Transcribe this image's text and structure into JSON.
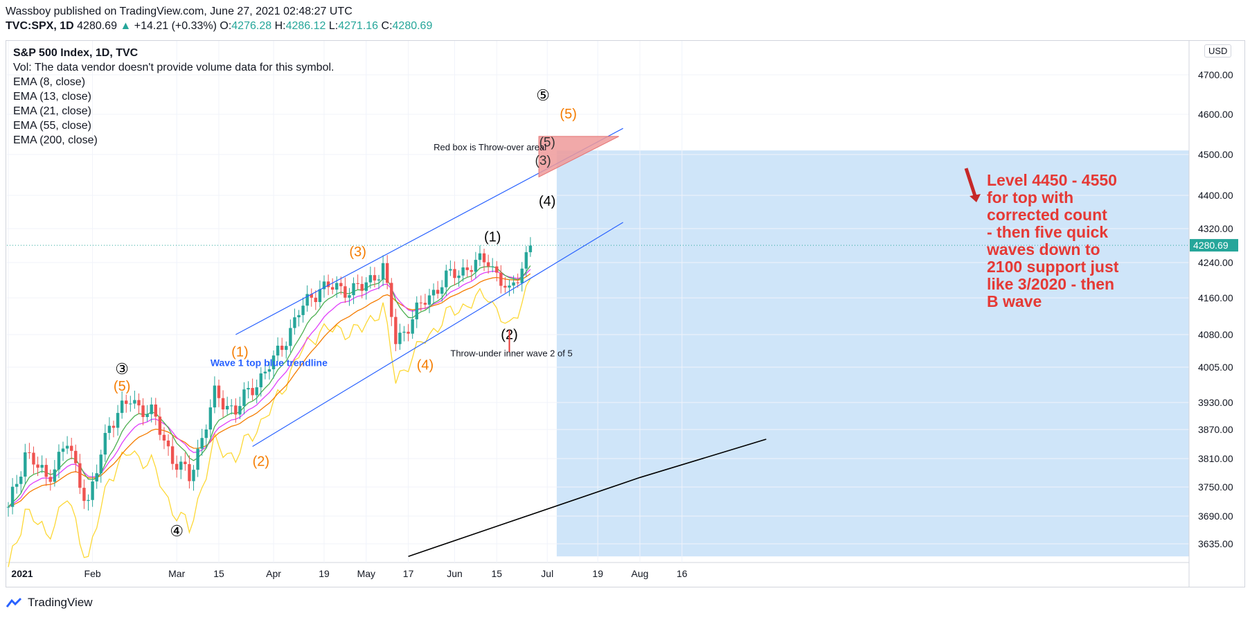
{
  "header": {
    "published": "Wassboy published on TradingView.com, June 27, 2021 02:48:27 UTC",
    "symbol": "TVC:SPX, 1D",
    "last": "4280.69",
    "change_arrow": "▲",
    "change": "+14.21 (+0.33%)",
    "o_label": "O:",
    "o": "4276.28",
    "h_label": "H:",
    "h": "4286.12",
    "l_label": "L:",
    "l": "4271.16",
    "c_label": "C:",
    "c": "4280.69"
  },
  "legend": {
    "title": "S&P 500 Index, 1D, TVC",
    "vol": "Vol: The data vendor doesn't provide volume data for this symbol.",
    "emas": [
      "EMA (8, close)",
      "EMA (13, close)",
      "EMA (21, close)",
      "EMA (55, close)",
      "EMA (200, close)"
    ]
  },
  "currency": "USD",
  "footer": {
    "brand": "TradingView"
  },
  "colors": {
    "up": "#26a69a",
    "down": "#ef5350",
    "ema8": "#4caf50",
    "ema13": "#e040fb",
    "ema21": "#f57c00",
    "ema55": "#fdd835",
    "ema200": "#000000",
    "channel": "#2962ff",
    "orange": "#f57c00",
    "red_text": "#e53935",
    "box": "#ef9a9a",
    "projection": "#cfe5f9"
  },
  "chart_data": {
    "type": "candlestick",
    "title": "S&P 500 Index, 1D, TVC",
    "y_ticks": [
      3635,
      3690,
      3750,
      3810,
      3870,
      3930,
      4005,
      4080,
      4160,
      4240,
      4320,
      4400,
      4500,
      4600,
      4700
    ],
    "y_tick_labels": [
      "3635.00",
      "3690.00",
      "3750.00",
      "3810.00",
      "3870.00",
      "3930.00",
      "4005.00",
      "4080.00",
      "4160.00",
      "4240.00",
      "4320.00",
      "4400.00",
      "4500.00",
      "4600.00",
      "4700.00"
    ],
    "x_tick_labels": [
      "2021",
      "Feb",
      "Mar",
      "15",
      "Apr",
      "19",
      "May",
      "17",
      "Jun",
      "15",
      "Jul",
      "19",
      "Aug",
      "16"
    ],
    "last_price": "4280.69",
    "series": [
      {
        "name": "S&P 500 Index",
        "close_by_date": [
          [
            "2021-01-04",
            3700
          ],
          [
            "2021-01-08",
            3824
          ],
          [
            "2021-01-15",
            3768
          ],
          [
            "2021-01-22",
            3841
          ],
          [
            "2021-01-29",
            3714
          ],
          [
            "2021-02-05",
            3886
          ],
          [
            "2021-02-12",
            3934
          ],
          [
            "2021-02-19",
            3906
          ],
          [
            "2021-02-26",
            3811
          ],
          [
            "2021-03-04",
            3768
          ],
          [
            "2021-03-12",
            3943
          ],
          [
            "2021-03-19",
            3913
          ],
          [
            "2021-03-26",
            3974
          ],
          [
            "2021-04-01",
            4019
          ],
          [
            "2021-04-09",
            4128
          ],
          [
            "2021-04-16",
            4185
          ],
          [
            "2021-04-23",
            4180
          ],
          [
            "2021-04-30",
            4181
          ],
          [
            "2021-05-07",
            4232
          ],
          [
            "2021-05-12",
            4063
          ],
          [
            "2021-05-21",
            4155
          ],
          [
            "2021-05-28",
            4204
          ],
          [
            "2021-06-04",
            4229
          ],
          [
            "2021-06-11",
            4247
          ],
          [
            "2021-06-18",
            4166
          ],
          [
            "2021-06-25",
            4280
          ]
        ]
      }
    ],
    "annotations": [
      {
        "text": "③",
        "price": 3990
      },
      {
        "text": "(5)",
        "price": 3955
      },
      {
        "text": "④",
        "price": 3650
      },
      {
        "text": "(1)",
        "price": 4030
      },
      {
        "text": "(2)",
        "price": 3795
      },
      {
        "text": "(3)",
        "price": 4255
      },
      {
        "text": "(4)",
        "price": 4000
      },
      {
        "text": "(1)",
        "price": 4290
      },
      {
        "text": "(2)",
        "price": 4070
      },
      {
        "text": "(3)",
        "price": 4475
      },
      {
        "text": "(4)",
        "price": 4375
      },
      {
        "text": "(5)",
        "price": 4520
      },
      {
        "text": "⑤",
        "price": 4635
      },
      {
        "text": "(5)",
        "price": 4590
      }
    ],
    "notes": [
      "Wave 1 top blue trendline",
      "Red box is Throw-over areal",
      "Throw-under inner wave 2 of 5",
      "Level 4450 - 4550",
      "for top with",
      "corrected count",
      "- then five quick",
      "waves down to",
      "2100 support just",
      "like 3/2020 - then",
      "B wave"
    ],
    "projection_box": {
      "price_top": 4510,
      "price_bottom": 3610
    }
  }
}
